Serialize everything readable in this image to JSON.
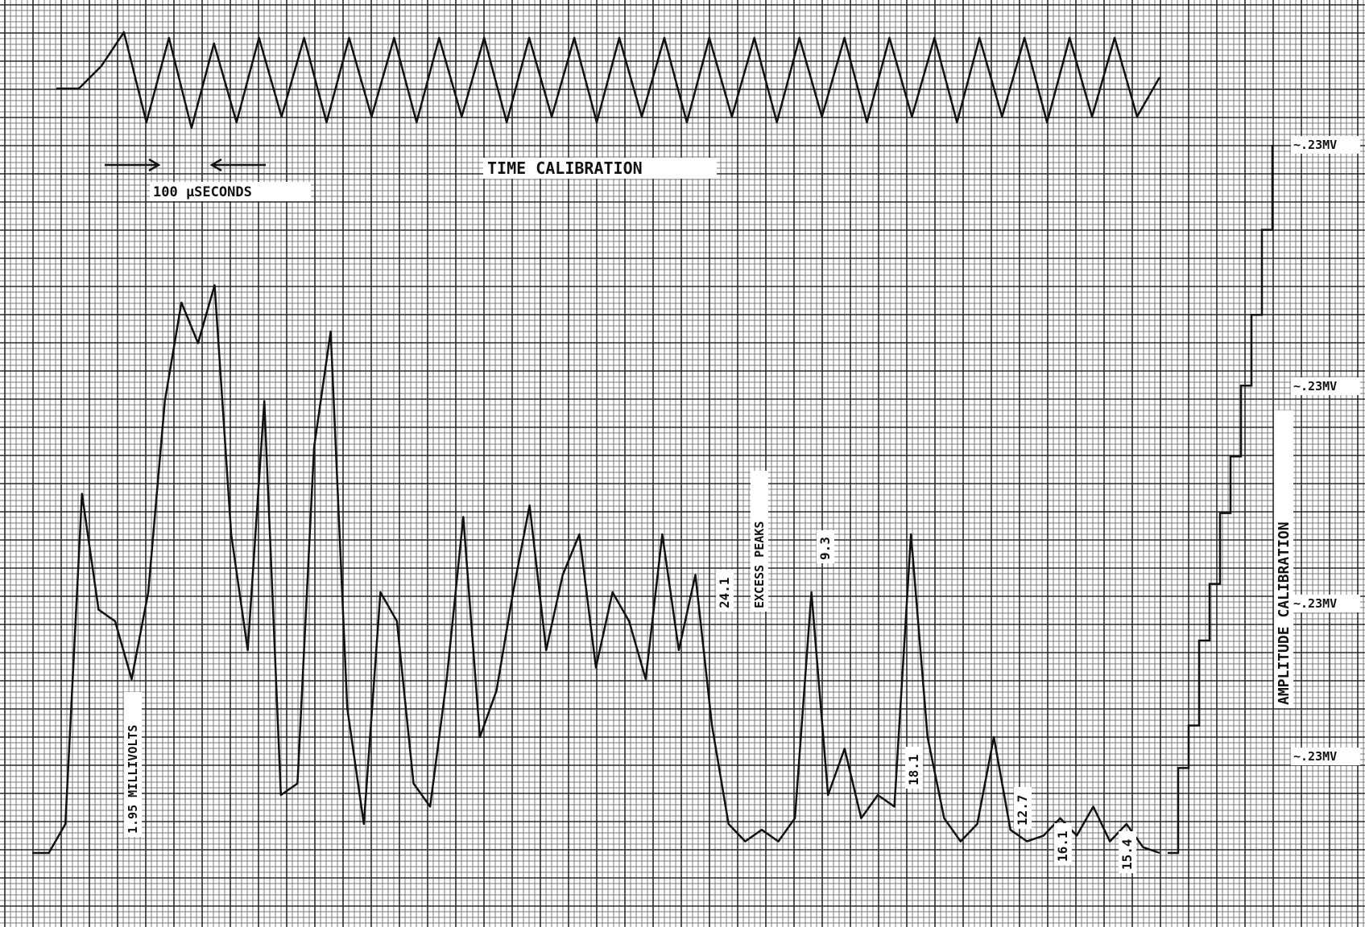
{
  "colors": {
    "paper": "#ffffff",
    "grid_major": "#2a2a2a",
    "grid_minor": "#7a7a7a",
    "trace": "#111111"
  },
  "chart_data": [
    {
      "type": "line",
      "title": "",
      "annotations": {
        "time_calibration": "TIME CALIBRATION",
        "interval": "100 μSECONDS"
      },
      "series": [
        {
          "values": [
            0,
            0,
            0.4,
            1.0,
            -0.6,
            0.9,
            -0.7,
            0.8,
            -0.6,
            0.9,
            -0.5,
            0.9,
            -0.6,
            0.9,
            -0.5,
            0.9,
            -0.6,
            0.9,
            -0.5,
            0.9,
            -0.6,
            0.9,
            -0.5,
            0.9,
            -0.6,
            0.9,
            -0.5,
            0.9,
            -0.6,
            0.9,
            -0.5,
            0.9,
            -0.6,
            0.9,
            -0.5,
            0.9,
            -0.6,
            0.9,
            -0.5,
            0.9,
            -0.6,
            0.9,
            -0.5,
            0.9,
            -0.6,
            0.9,
            -0.5,
            0.9,
            -0.5,
            0.2
          ]
        }
      ]
    },
    {
      "type": "line",
      "title": "",
      "annotations": {
        "left_vertical": "1.95 MILLIVOLTS",
        "escape_tag": "EXCESS PEAKS",
        "amplitude_calibration": "AMPLITUDE CALIBRATION"
      },
      "peak_labels": [
        "24.1",
        "9.3",
        "18.1",
        "12.7",
        "16.1",
        "15.4"
      ],
      "calibration_levels": [
        "~.23MV",
        "~.23MV",
        "~.23MV",
        "~.23MV"
      ],
      "series": [
        {
          "values": [
            0,
            0,
            0.05,
            0.62,
            0.42,
            0.4,
            0.3,
            0.45,
            0.78,
            0.95,
            0.88,
            0.98,
            0.55,
            0.35,
            0.78,
            0.1,
            0.12,
            0.7,
            0.9,
            0.25,
            0.05,
            0.45,
            0.4,
            0.12,
            0.08,
            0.3,
            0.58,
            0.2,
            0.28,
            0.45,
            0.6,
            0.35,
            0.48,
            0.55,
            0.32,
            0.45,
            0.4,
            0.3,
            0.55,
            0.35,
            0.48,
            0.22,
            0.05,
            0.02,
            0.04,
            0.02,
            0.06,
            0.45,
            0.1,
            0.18,
            0.06,
            0.1,
            0.08,
            0.55,
            0.2,
            0.06,
            0.02,
            0.05,
            0.2,
            0.04,
            0.02,
            0.03,
            0.06,
            0.03,
            0.08,
            0.02,
            0.05,
            0.01,
            0.0
          ]
        },
        {
          "name": "",
          "values": [
            0.0,
            0.12,
            0.18,
            0.3,
            0.38,
            0.48,
            0.56,
            0.66,
            0.76,
            0.88,
            1.0
          ]
        }
      ]
    }
  ]
}
